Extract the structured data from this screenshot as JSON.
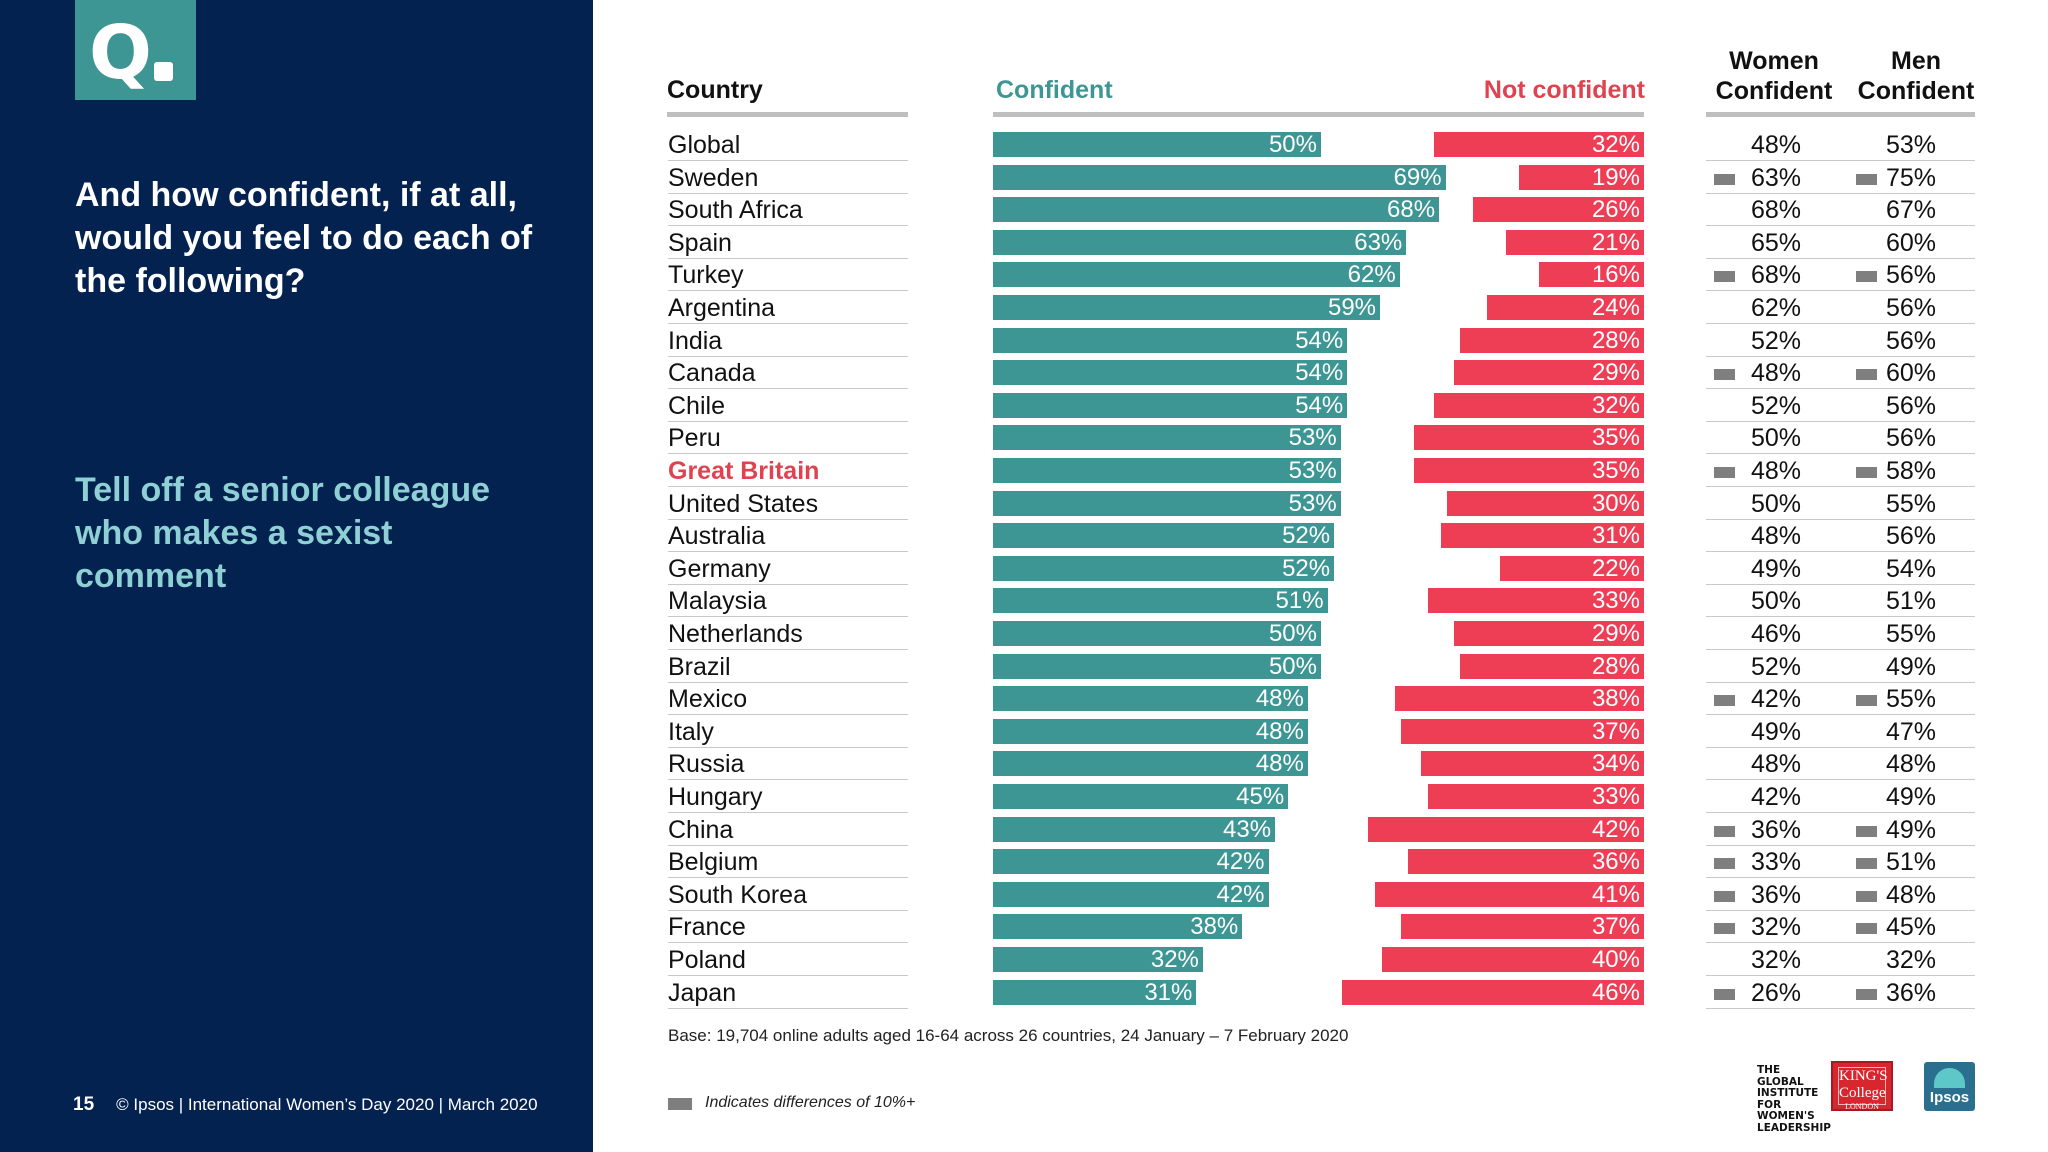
{
  "page": {
    "number": "15",
    "footer": "© Ipsos | International Women’s Day 2020 | March 2020",
    "question": "And how confident, if at all, would you feel to do each of the following?",
    "subject": "Tell off a senior colleague who makes a sexist comment",
    "base_note": "Base: 19,704 online adults aged 16-64 across 26 countries,  24 January – 7 February 2020",
    "legend_note": "Indicates differences of 10%+",
    "logo_q": "Q",
    "logos": {
      "giwl": "THE GLOBAL INSTITUTE FOR WOMEN'S LEADERSHIP",
      "kcl_main": "KING'S College",
      "kcl_sub": "LONDON",
      "ipsos": "Ipsos"
    }
  },
  "colors": {
    "panel": "#04224f",
    "confident": "#3d9694",
    "not_confident": "#ee3e55",
    "highlight": "#e0434f",
    "diff_marker": "#7f7f7f"
  },
  "chart_data": {
    "type": "bar",
    "subtype": "diverging-horizontal-bar-table",
    "title": "Tell off a senior colleague who makes a sexist comment",
    "headers": {
      "country": "Country",
      "confident": "Confident",
      "not_confident": "Not confident",
      "women": "Women Confident",
      "men": "Men Confident"
    },
    "xlim": [
      0,
      100
    ],
    "value_format": "percent",
    "highlighted_category": "Great Britain",
    "categories": [
      "Global",
      "Sweden",
      "South Africa",
      "Spain",
      "Turkey",
      "Argentina",
      "India",
      "Canada",
      "Chile",
      "Peru",
      "Great Britain",
      "United States",
      "Australia",
      "Germany",
      "Malaysia",
      "Netherlands",
      "Brazil",
      "Mexico",
      "Italy",
      "Russia",
      "Hungary",
      "China",
      "Belgium",
      "South Korea",
      "France",
      "Poland",
      "Japan"
    ],
    "series": [
      {
        "name": "Confident",
        "values": [
          50,
          69,
          68,
          63,
          62,
          59,
          54,
          54,
          54,
          53,
          53,
          53,
          52,
          52,
          51,
          50,
          50,
          48,
          48,
          48,
          45,
          43,
          42,
          42,
          38,
          32,
          31
        ]
      },
      {
        "name": "Not confident",
        "values": [
          32,
          19,
          26,
          21,
          16,
          24,
          28,
          29,
          32,
          35,
          35,
          30,
          31,
          22,
          33,
          29,
          28,
          38,
          37,
          34,
          33,
          42,
          36,
          41,
          37,
          40,
          46
        ]
      },
      {
        "name": "Women Confident",
        "values": [
          48,
          63,
          68,
          65,
          68,
          62,
          52,
          48,
          52,
          50,
          48,
          50,
          48,
          49,
          50,
          46,
          52,
          42,
          49,
          48,
          42,
          36,
          33,
          36,
          32,
          32,
          26
        ]
      },
      {
        "name": "Men Confident",
        "values": [
          53,
          75,
          67,
          60,
          56,
          56,
          56,
          60,
          56,
          56,
          58,
          55,
          56,
          54,
          51,
          55,
          49,
          55,
          47,
          48,
          49,
          49,
          51,
          48,
          45,
          32,
          36
        ]
      }
    ],
    "difference_10pct_plus": [
      false,
      true,
      false,
      false,
      true,
      false,
      false,
      true,
      false,
      false,
      true,
      false,
      false,
      false,
      false,
      false,
      false,
      true,
      false,
      false,
      false,
      true,
      true,
      true,
      true,
      false,
      true
    ]
  }
}
